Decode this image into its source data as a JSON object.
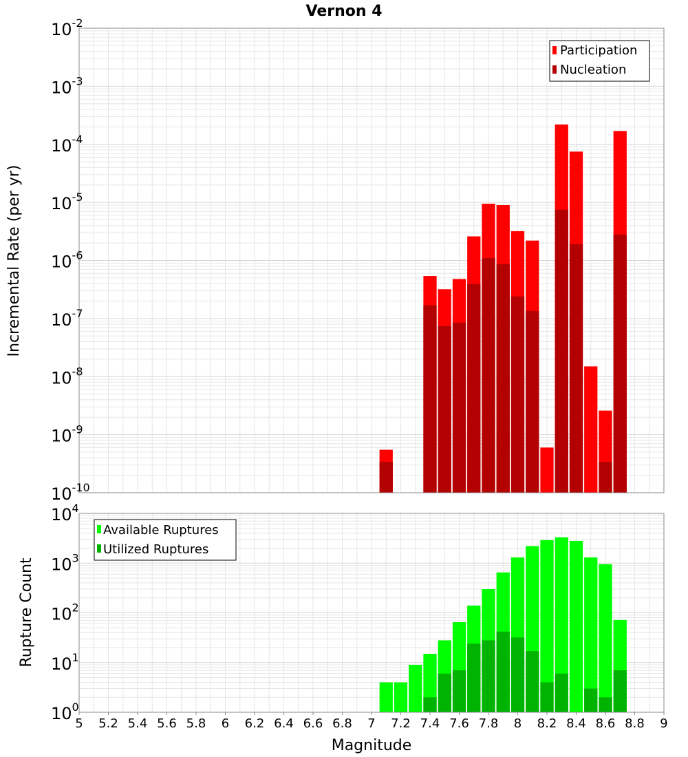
{
  "colors": {
    "participation": "#ff0000",
    "nucleation": "#b30000",
    "available": "#00ff00",
    "utilized": "#00b300",
    "grid": "#e6e6e6",
    "axis": "#888888",
    "background": "#ffffff"
  },
  "chart_data": [
    {
      "type": "bar",
      "title": "Vernon 4",
      "ylabel": "Incremental Rate (per yr)",
      "yscale": "log",
      "ylim_exp": [
        -10,
        -2
      ],
      "xlim": [
        5,
        9
      ],
      "bin_width": 0.1,
      "legend_position": "top-right",
      "series": [
        {
          "name": "Participation",
          "color_key": "participation",
          "x": [
            7.1,
            7.4,
            7.5,
            7.6,
            7.7,
            7.8,
            7.9,
            8.0,
            8.1,
            8.2,
            8.3,
            8.4,
            8.5,
            8.6,
            8.7
          ],
          "values": [
            5.5e-10,
            5.4e-07,
            3.2e-07,
            4.8e-07,
            2.6e-06,
            9.5e-06,
            9e-06,
            3.2e-06,
            2.2e-06,
            6e-10,
            0.00022,
            7.5e-05,
            1.5e-08,
            2.6e-09,
            0.00017
          ]
        },
        {
          "name": "Nucleation",
          "color_key": "nucleation",
          "x": [
            7.1,
            7.4,
            7.5,
            7.6,
            7.7,
            7.8,
            7.9,
            8.0,
            8.1,
            8.3,
            8.4,
            8.6,
            8.7
          ],
          "values": [
            3.4e-10,
            1.7e-07,
            7.4e-08,
            8.5e-08,
            3.9e-07,
            1.1e-06,
            8.6e-07,
            2.4e-07,
            1.35e-07,
            7.5e-06,
            1.9e-06,
            3.4e-10,
            2.8e-06
          ]
        }
      ]
    },
    {
      "type": "bar",
      "ylabel": "Rupture Count",
      "xlabel": "Magnitude",
      "yscale": "log",
      "ylim_exp": [
        0,
        4
      ],
      "xlim": [
        5,
        9
      ],
      "bin_width": 0.1,
      "legend_position": "top-left",
      "x_ticks": [
        "5",
        "5.2",
        "5.4",
        "5.6",
        "5.8",
        "6",
        "6.2",
        "6.4",
        "6.6",
        "6.8",
        "7",
        "7.2",
        "7.4",
        "7.6",
        "7.8",
        "8",
        "8.2",
        "8.4",
        "8.6",
        "8.8",
        "9"
      ],
      "series": [
        {
          "name": "Available Ruptures",
          "color_key": "available",
          "x": [
            6.9,
            7.1,
            7.2,
            7.3,
            7.4,
            7.5,
            7.6,
            7.7,
            7.8,
            7.9,
            8.0,
            8.1,
            8.2,
            8.3,
            8.4,
            8.5,
            8.6,
            8.7
          ],
          "values": [
            1,
            4,
            4,
            9,
            15,
            28,
            65,
            140,
            300,
            650,
            1300,
            2200,
            2900,
            3300,
            2800,
            1300,
            950,
            72
          ]
        },
        {
          "name": "Utilized Ruptures",
          "color_key": "utilized",
          "x": [
            7.1,
            7.3,
            7.4,
            7.5,
            7.6,
            7.7,
            7.8,
            7.9,
            8.0,
            8.1,
            8.2,
            8.3,
            8.4,
            8.5,
            8.6,
            8.7
          ],
          "values": [
            1,
            1,
            2,
            6,
            7,
            24,
            28,
            42,
            32,
            17,
            4,
            6,
            1,
            3,
            2,
            7
          ]
        }
      ]
    }
  ]
}
